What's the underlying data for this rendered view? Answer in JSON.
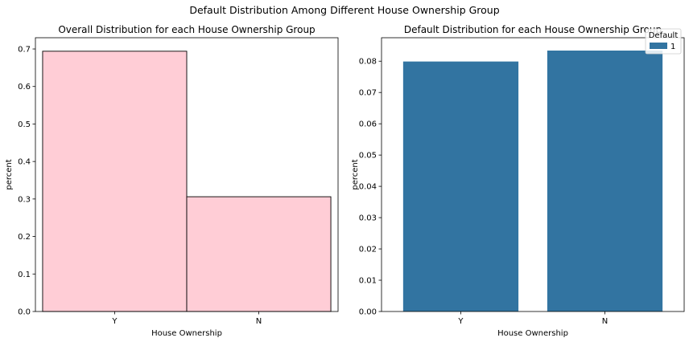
{
  "figure": {
    "suptitle": "Default Distribution Among Different House Ownership Group"
  },
  "chart_data": [
    {
      "type": "bar",
      "title": "Overall Distribution for each House Ownership Group",
      "xlabel": "House Ownership",
      "ylabel": "percent",
      "categories": [
        "Y",
        "N"
      ],
      "values": [
        0.694,
        0.306
      ],
      "ylim": [
        0,
        0.73
      ],
      "yticks": [
        0.0,
        0.1,
        0.2,
        0.3,
        0.4,
        0.5,
        0.6,
        0.7
      ],
      "ytick_labels": [
        "0.0",
        "0.1",
        "0.2",
        "0.3",
        "0.4",
        "0.5",
        "0.6",
        "0.7"
      ],
      "bar_color": "#ffcdd6",
      "edge_color": "#000000",
      "grid": false
    },
    {
      "type": "bar",
      "title": "Default Distribution for each House Ownership Group",
      "xlabel": "House Ownership",
      "ylabel": "percent",
      "categories": [
        "Y",
        "N"
      ],
      "series": [
        {
          "name": "1",
          "values": [
            0.0799,
            0.0834
          ]
        }
      ],
      "ylim": [
        0,
        0.0875
      ],
      "yticks": [
        0.0,
        0.01,
        0.02,
        0.03,
        0.04,
        0.05,
        0.06,
        0.07,
        0.08
      ],
      "ytick_labels": [
        "0.00",
        "0.01",
        "0.02",
        "0.03",
        "0.04",
        "0.05",
        "0.06",
        "0.07",
        "0.08"
      ],
      "legend": {
        "title": "Default",
        "placement": "top-right"
      },
      "bar_color": "#3274a1",
      "grid": false
    }
  ]
}
